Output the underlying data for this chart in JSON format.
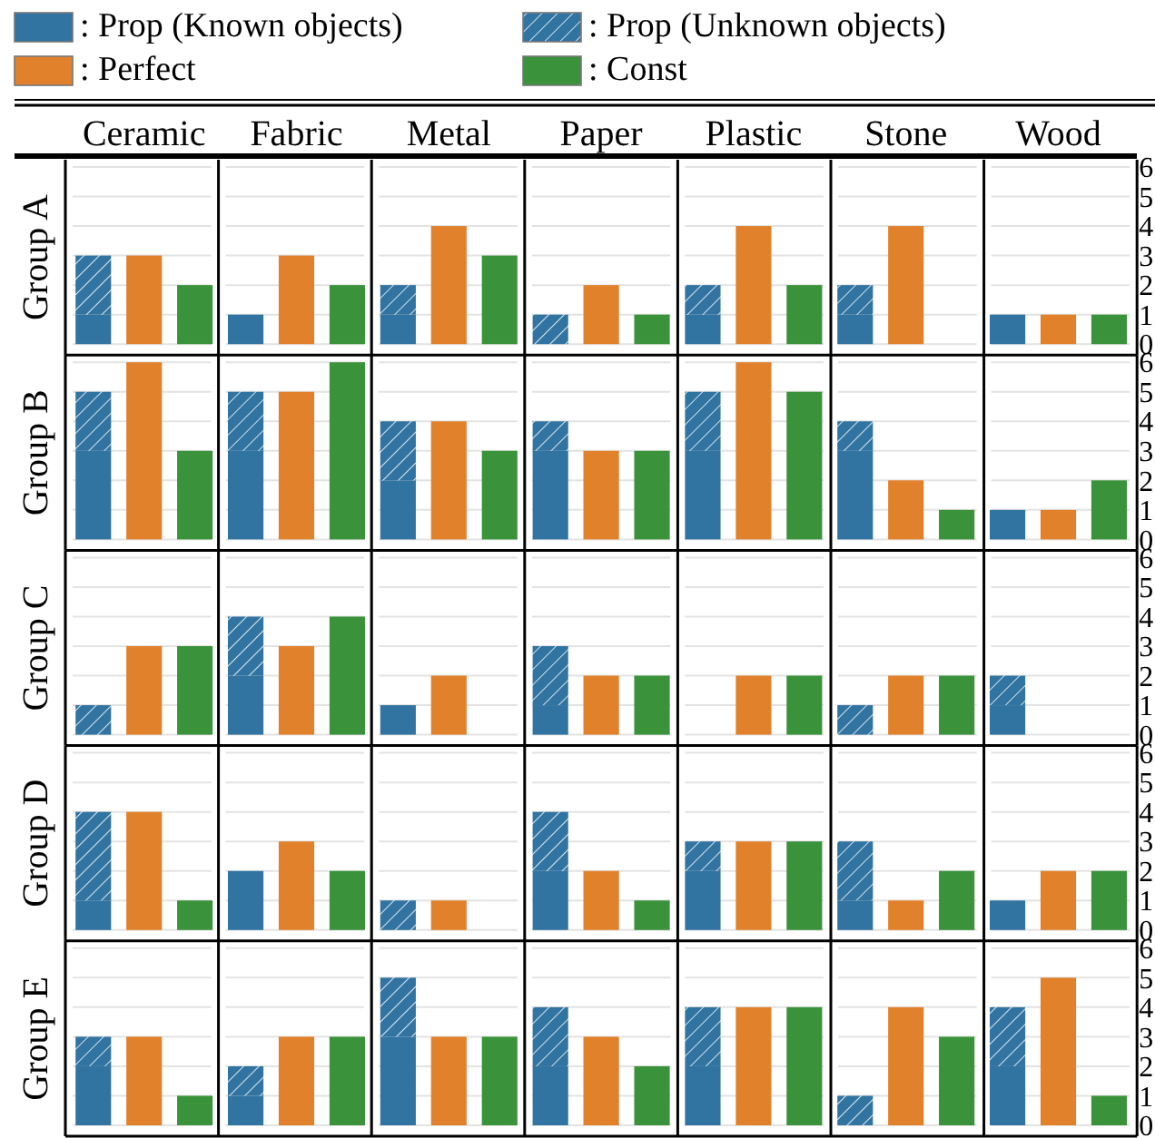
{
  "chart_data": [
    {
      "type": "bar",
      "ylabel": "Group A",
      "categories": [
        null,
        "Ceramic",
        null,
        null,
        "Fabric",
        null,
        null,
        "Metal",
        null,
        null,
        "Paper",
        null,
        null,
        "Plastic",
        null,
        null,
        "Stone",
        null,
        null,
        "Wood",
        null
      ],
      "stacked": true,
      "legend": "top",
      "ylim": [
        0,
        6
      ],
      "yticks": [
        0,
        1,
        2,
        3,
        4,
        5,
        6
      ],
      "grid": "y",
      "series": [
        {
          "name": ": Prop (Known objects)",
          "color": "#3274a1",
          "values": [
            1,
            null,
            null,
            1,
            null,
            null,
            1,
            null,
            null,
            0,
            null,
            null,
            1,
            null,
            null,
            1,
            null,
            null,
            1,
            null,
            null
          ]
        },
        {
          "name": ": Prop (Unknown objects)",
          "color": "#3274a1",
          "values": [
            2,
            null,
            null,
            0,
            null,
            null,
            1,
            null,
            null,
            1,
            null,
            null,
            1,
            null,
            null,
            1,
            null,
            null,
            0,
            null,
            null
          ]
        },
        {
          "name": ": Perfect",
          "color": "#e1812c",
          "values": [
            null,
            3,
            null,
            null,
            3,
            null,
            null,
            4,
            null,
            null,
            2,
            null,
            null,
            4,
            null,
            null,
            4,
            null,
            null,
            1,
            null
          ]
        },
        {
          "name": ": Const",
          "color": "#3a923a",
          "values": [
            null,
            null,
            2,
            null,
            null,
            2,
            null,
            null,
            3,
            null,
            null,
            1,
            null,
            null,
            2,
            null,
            null,
            0,
            null,
            null,
            1
          ]
        }
      ]
    },
    {
      "type": "bar",
      "ylabel": "Group B",
      "categories": [
        null,
        null,
        null,
        null,
        null,
        null,
        null,
        null,
        null,
        null,
        null,
        null,
        null,
        null,
        null,
        null,
        null,
        null,
        null,
        null,
        null
      ],
      "stacked": true,
      "ylim": [
        0,
        6
      ],
      "yticks": [
        0,
        1,
        2,
        3,
        4,
        5,
        6
      ],
      "grid": "y",
      "series": [
        {
          "color": "#3274a1",
          "values": [
            3,
            null,
            null,
            3,
            null,
            null,
            2,
            null,
            null,
            3,
            null,
            null,
            3,
            null,
            null,
            3,
            null,
            null,
            1,
            null,
            null
          ]
        },
        {
          "color": "#3274a1",
          "values": [
            2,
            null,
            null,
            2,
            null,
            null,
            2,
            null,
            null,
            1,
            null,
            null,
            2,
            null,
            null,
            1,
            null,
            null,
            0,
            null,
            null
          ]
        },
        {
          "color": "#e1812c",
          "values": [
            null,
            6,
            null,
            null,
            5,
            null,
            null,
            4,
            null,
            null,
            3,
            null,
            null,
            6,
            null,
            null,
            2,
            null,
            null,
            1,
            null
          ]
        },
        {
          "color": "#3a923a",
          "values": [
            null,
            null,
            3,
            null,
            null,
            6,
            null,
            null,
            3,
            null,
            null,
            3,
            null,
            null,
            5,
            null,
            null,
            1,
            null,
            null,
            2
          ]
        }
      ]
    },
    {
      "type": "bar",
      "ylabel": "Group C",
      "categories": [
        null,
        null,
        null,
        null,
        null,
        null,
        null,
        null,
        null,
        null,
        null,
        null,
        null,
        null,
        null,
        null,
        null,
        null,
        null,
        null,
        null
      ],
      "stacked": true,
      "ylim": [
        0,
        6
      ],
      "yticks": [
        0,
        1,
        2,
        3,
        4,
        5,
        6
      ],
      "grid": "y",
      "series": [
        {
          "color": "#3274a1",
          "values": [
            0,
            null,
            null,
            2,
            null,
            null,
            1,
            null,
            null,
            1,
            null,
            null,
            0,
            null,
            null,
            0,
            null,
            null,
            1,
            null,
            null
          ]
        },
        {
          "color": "#3274a1",
          "values": [
            1,
            null,
            null,
            2,
            null,
            null,
            0,
            null,
            null,
            2,
            null,
            null,
            0,
            null,
            null,
            1,
            null,
            null,
            1,
            null,
            null
          ]
        },
        {
          "color": "#e1812c",
          "values": [
            null,
            3,
            null,
            null,
            3,
            null,
            null,
            2,
            null,
            null,
            2,
            null,
            null,
            2,
            null,
            null,
            2,
            null,
            null,
            0,
            null
          ]
        },
        {
          "color": "#3a923a",
          "values": [
            null,
            null,
            3,
            null,
            null,
            4,
            null,
            null,
            0,
            null,
            null,
            2,
            null,
            null,
            2,
            null,
            null,
            2,
            null,
            null,
            0
          ]
        }
      ]
    },
    {
      "type": "bar",
      "ylabel": "Group D",
      "categories": [
        null,
        null,
        null,
        null,
        null,
        null,
        null,
        null,
        null,
        null,
        null,
        null,
        null,
        null,
        null,
        null,
        null,
        null,
        null,
        null,
        null
      ],
      "stacked": true,
      "ylim": [
        0,
        6
      ],
      "yticks": [
        0,
        1,
        2,
        3,
        4,
        5,
        6
      ],
      "grid": "y",
      "series": [
        {
          "color": "#3274a1",
          "values": [
            1,
            null,
            null,
            2,
            null,
            null,
            0,
            null,
            null,
            2,
            null,
            null,
            2,
            null,
            null,
            1,
            null,
            null,
            1,
            null,
            null
          ]
        },
        {
          "color": "#3274a1",
          "values": [
            3,
            null,
            null,
            0,
            null,
            null,
            1,
            null,
            null,
            2,
            null,
            null,
            1,
            null,
            null,
            2,
            null,
            null,
            0,
            null,
            null
          ]
        },
        {
          "color": "#e1812c",
          "values": [
            null,
            4,
            null,
            null,
            3,
            null,
            null,
            1,
            null,
            null,
            2,
            null,
            null,
            3,
            null,
            null,
            1,
            null,
            null,
            2,
            null
          ]
        },
        {
          "color": "#3a923a",
          "values": [
            null,
            null,
            1,
            null,
            null,
            2,
            null,
            null,
            0,
            null,
            null,
            1,
            null,
            null,
            3,
            null,
            null,
            2,
            null,
            null,
            2
          ]
        }
      ]
    },
    {
      "type": "bar",
      "ylabel": "Group E",
      "categories": [
        null,
        null,
        null,
        null,
        null,
        null,
        null,
        null,
        null,
        null,
        null,
        null,
        null,
        null,
        null,
        null,
        null,
        null,
        null,
        null,
        null
      ],
      "stacked": true,
      "ylim": [
        0,
        6
      ],
      "yticks": [
        0,
        1,
        2,
        3,
        4,
        5,
        6
      ],
      "grid": "y",
      "series": [
        {
          "color": "#3274a1",
          "values": [
            2,
            null,
            null,
            1,
            null,
            null,
            3,
            null,
            null,
            2,
            null,
            null,
            2,
            null,
            null,
            0,
            null,
            null,
            2,
            null,
            null
          ]
        },
        {
          "color": "#3274a1",
          "values": [
            1,
            null,
            null,
            1,
            null,
            null,
            2,
            null,
            null,
            2,
            null,
            null,
            2,
            null,
            null,
            1,
            null,
            null,
            2,
            null,
            null
          ]
        },
        {
          "color": "#e1812c",
          "values": [
            null,
            3,
            null,
            null,
            3,
            null,
            null,
            3,
            null,
            null,
            3,
            null,
            null,
            4,
            null,
            null,
            4,
            null,
            null,
            5,
            null
          ]
        },
        {
          "color": "#3a923a",
          "values": [
            null,
            null,
            1,
            null,
            null,
            3,
            null,
            null,
            3,
            null,
            null,
            2,
            null,
            null,
            4,
            null,
            null,
            3,
            null,
            null,
            1
          ]
        }
      ]
    }
  ]
}
